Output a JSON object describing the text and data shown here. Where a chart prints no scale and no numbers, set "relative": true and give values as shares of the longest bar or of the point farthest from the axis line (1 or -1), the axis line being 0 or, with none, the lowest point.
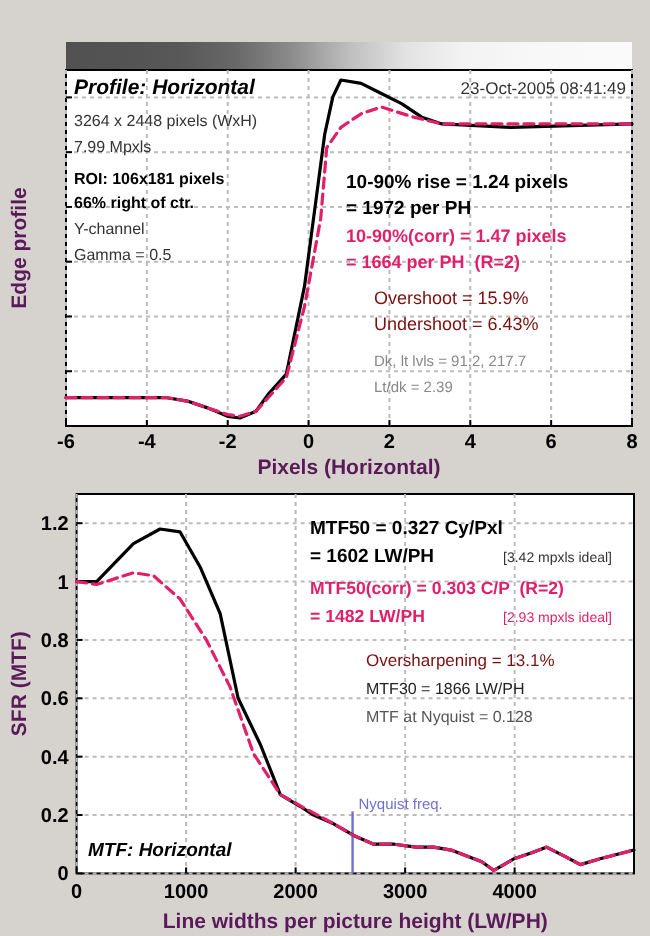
{
  "chart_data": [
    {
      "type": "line",
      "relative": true,
      "xlabel": "Pixels (Horizontal)",
      "ylabel": "Edge profile",
      "xlim": [
        -6,
        8
      ],
      "xticks": [
        -6,
        -4,
        -2,
        0,
        2,
        4,
        6,
        8
      ],
      "grid": true,
      "tick_labels": "x",
      "series": [
        {
          "color": "#000000",
          "line_style": "solid",
          "x": [
            -6,
            -3.5,
            -3,
            -2.5,
            -2,
            -1.7,
            -1.3,
            -1,
            -0.55,
            -0.1,
            0.1,
            0.4,
            0.6,
            0.8,
            1.3,
            1.8,
            2.3,
            2.8,
            3.3,
            5,
            8
          ],
          "values": [
            0.06,
            0.06,
            0.05,
            0.03,
            0.005,
            0,
            0.02,
            0.07,
            0.13,
            0.39,
            0.57,
            0.84,
            0.95,
            1,
            0.99,
            0.96,
            0.93,
            0.89,
            0.87,
            0.86,
            0.87
          ]
        },
        {
          "color": "#e0206a",
          "line_style": "dashed",
          "x": [
            -6,
            -3.5,
            -3,
            -2.5,
            -2,
            -1.7,
            -1.3,
            -1,
            -0.55,
            -0.1,
            0.3,
            0.45,
            0.8,
            1.3,
            1.8,
            2.6,
            3.3,
            5,
            8
          ],
          "values": [
            0.06,
            0.06,
            0.05,
            0.03,
            0.01,
            0.005,
            0.02,
            0.06,
            0.12,
            0.33,
            0.59,
            0.8,
            0.86,
            0.9,
            0.92,
            0.89,
            0.87,
            0.87,
            0.87
          ]
        }
      ],
      "annotations": [
        "Profile: Horizontal",
        "23-Oct-2005 08:41:49",
        "3264 x 2448 pixels (WxH)",
        "7.99 Mpxls",
        "ROI: 106x181 pixels",
        "66% right of ctr.",
        "Y-channel",
        "Gamma = 0.5",
        "10-90% rise = 1.24 pixels",
        "= 1972 per PH",
        "10-90%(corr) = 1.47 pixels",
        "= 1664 per PH  (R=2)",
        "Overshoot = 15.9%",
        "Undershoot = 6.43%",
        "Dk, lt lvls = 91.2, 217.7",
        "Lt/dk = 2.39"
      ]
    },
    {
      "type": "line",
      "xlabel": "Line widths per picture height (LW/PH)",
      "ylabel": "SFR (MTF)",
      "xlim": [
        0,
        5090
      ],
      "xticks": [
        0,
        1000,
        2000,
        3000,
        4000
      ],
      "ylim": [
        0,
        1.3
      ],
      "yticks": [
        0,
        0.2,
        0.4,
        0.6,
        0.8,
        1,
        1.2
      ],
      "grid": true,
      "series": [
        {
          "color": "#000000",
          "line_style": "solid",
          "x": [
            0,
            183,
            519,
            762,
            945,
            1128,
            1311,
            1475,
            1680,
            1860,
            2040,
            2165,
            2347,
            2530,
            2713,
            2900,
            3100,
            3260,
            3420,
            3563,
            3700,
            3810,
            3993,
            4150,
            4290,
            4450,
            4600,
            4780,
            5090
          ],
          "values": [
            1,
            1,
            1.13,
            1.18,
            1.17,
            1.05,
            0.89,
            0.6,
            0.44,
            0.27,
            0.23,
            0.2,
            0.17,
            0.13,
            0.1,
            0.1,
            0.09,
            0.09,
            0.08,
            0.06,
            0.04,
            0.01,
            0.05,
            0.07,
            0.09,
            0.06,
            0.03,
            0.05,
            0.08
          ]
        },
        {
          "color": "#e0206a",
          "line_style": "dashed",
          "x": [
            0,
            183,
            519,
            702,
            945,
            1185,
            1400,
            1616,
            1860,
            2100,
            2347,
            2530,
            2713,
            2900,
            3100,
            3260,
            3420,
            3563,
            3700,
            3810,
            3993,
            4150,
            4290,
            4450,
            4600,
            4780,
            5090
          ],
          "values": [
            1,
            0.99,
            1.03,
            1.02,
            0.94,
            0.8,
            0.64,
            0.41,
            0.27,
            0.22,
            0.17,
            0.13,
            0.1,
            0.1,
            0.09,
            0.09,
            0.08,
            0.06,
            0.04,
            0.01,
            0.05,
            0.07,
            0.09,
            0.06,
            0.03,
            0.05,
            0.08
          ]
        }
      ],
      "ref_lines": [
        {
          "axis": "x",
          "value": 2520,
          "label": "Nyquist freq.",
          "color": "#7070d0"
        }
      ],
      "annotations": [
        "MTF50 = 0.327 Cy/Pxl",
        "= 1602 LW/PH",
        "[3.42 mpxls ideal]",
        "MTF50(corr) = 0.303 C/P  (R=2)",
        "= 1482 LW/PH",
        "[2.93 mpxls ideal]",
        "Oversharpening = 13.1%",
        "MTF30 = 1866 LW/PH",
        "MTF at Nyquist = 0.128",
        "MTF: Horizontal"
      ]
    }
  ]
}
